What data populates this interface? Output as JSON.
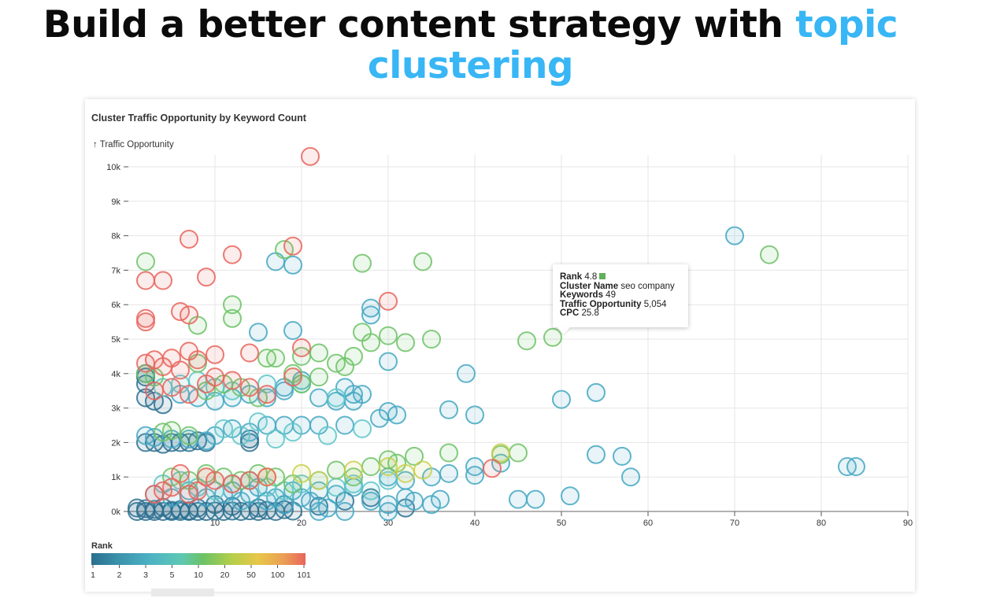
{
  "headline": {
    "prefix": "Build a better content strategy with",
    "accent": "topic",
    "line2": "clustering"
  },
  "colors": {
    "accent": "#38b6f5",
    "text": "#0b0b0b"
  },
  "chart_data": {
    "type": "scatter",
    "title": "Cluster Traffic Opportunity by Keyword Count",
    "ylabel": "↑ Traffic Opportunity",
    "xlabel": "",
    "xlim": [
      0,
      90
    ],
    "ylim": [
      0,
      10000
    ],
    "x_ticks": [
      "10",
      "20",
      "30",
      "40",
      "50",
      "60",
      "70",
      "80",
      "90"
    ],
    "y_ticks": [
      "0k",
      "1k",
      "2k",
      "3k",
      "4k",
      "5k",
      "6k",
      "7k",
      "8k",
      "9k",
      "10k"
    ],
    "grid": true,
    "size_encoding": "uniform",
    "color_field": "Rank",
    "color_legend": {
      "title": "Rank",
      "labels": [
        "1",
        "2",
        "3",
        "5",
        "10",
        "20",
        "50",
        "100",
        "101"
      ],
      "colors": [
        "#2a6f8f",
        "#3d95ae",
        "#4db3c4",
        "#5ec8b4",
        "#6cc266",
        "#b6cf4a",
        "#e8c64a",
        "#eb9e55",
        "#e8645c"
      ]
    },
    "tooltip": {
      "rank_label": "Rank",
      "rank": "4.8",
      "cluster_label": "Cluster Name",
      "cluster": "seo company",
      "keywords_label": "Keywords",
      "keywords": "49",
      "traffic_label": "Traffic Opportunity",
      "traffic": "5,054",
      "cpc_label": "CPC",
      "cpc": "25.8"
    },
    "series": [
      {
        "name": "rank-dark",
        "color": "#2a6f8f",
        "points": [
          [
            1,
            0
          ],
          [
            2,
            0
          ],
          [
            3,
            0
          ],
          [
            4,
            0
          ],
          [
            5,
            0
          ],
          [
            6,
            0
          ],
          [
            7,
            0
          ],
          [
            1,
            100
          ],
          [
            2,
            80
          ],
          [
            3,
            60
          ],
          [
            4,
            120
          ],
          [
            5,
            30
          ],
          [
            6,
            50
          ],
          [
            7,
            20
          ],
          [
            8,
            0
          ],
          [
            9,
            0
          ],
          [
            10,
            10
          ],
          [
            11,
            0
          ],
          [
            12,
            10
          ],
          [
            13,
            0
          ],
          [
            14,
            20
          ],
          [
            15,
            0
          ],
          [
            16,
            30
          ],
          [
            17,
            0
          ],
          [
            18,
            50
          ],
          [
            19,
            10
          ],
          [
            8,
            100
          ],
          [
            10,
            200
          ],
          [
            12,
            150
          ],
          [
            15,
            100
          ],
          [
            18,
            200
          ],
          [
            22,
            150
          ],
          [
            25,
            300
          ],
          [
            28,
            400
          ],
          [
            32,
            100
          ],
          [
            2,
            3300
          ],
          [
            3,
            3200
          ],
          [
            4,
            3100
          ],
          [
            2,
            2000
          ],
          [
            3,
            2000
          ],
          [
            4,
            1950
          ],
          [
            5,
            2000
          ],
          [
            6,
            2000
          ],
          [
            7,
            2000
          ],
          [
            8,
            2050
          ],
          [
            9,
            2000
          ],
          [
            14,
            2000
          ],
          [
            14,
            2100
          ],
          [
            2,
            3700
          ],
          [
            2,
            4000
          ],
          [
            2,
            3900
          ]
        ]
      },
      {
        "name": "rank-mid",
        "color": "#43a7c2",
        "points": [
          [
            12,
            600
          ],
          [
            14,
            500
          ],
          [
            16,
            300
          ],
          [
            18,
            200
          ],
          [
            20,
            400
          ],
          [
            22,
            600
          ],
          [
            24,
            500
          ],
          [
            26,
            700
          ],
          [
            28,
            300
          ],
          [
            30,
            200
          ],
          [
            32,
            400
          ],
          [
            33,
            300
          ],
          [
            35,
            200
          ],
          [
            36,
            350
          ],
          [
            3,
            500
          ],
          [
            5,
            400
          ],
          [
            7,
            600
          ],
          [
            9,
            400
          ],
          [
            11,
            500
          ],
          [
            13,
            300
          ],
          [
            15,
            700
          ],
          [
            17,
            400
          ],
          [
            19,
            600
          ],
          [
            21,
            300
          ],
          [
            23,
            100
          ],
          [
            25,
            0
          ],
          [
            30,
            0
          ],
          [
            22,
            0
          ],
          [
            6,
            3400
          ],
          [
            8,
            3300
          ],
          [
            10,
            3200
          ],
          [
            12,
            3300
          ],
          [
            14,
            3400
          ],
          [
            16,
            3300
          ],
          [
            18,
            3600
          ],
          [
            18,
            3500
          ],
          [
            20,
            3800
          ],
          [
            22,
            3300
          ],
          [
            24,
            3200
          ],
          [
            26,
            3400
          ],
          [
            2,
            2200
          ],
          [
            3,
            2150
          ],
          [
            5,
            2100
          ],
          [
            7,
            2100
          ],
          [
            9,
            2050
          ],
          [
            10,
            2200
          ],
          [
            12,
            2400
          ],
          [
            14,
            2300
          ],
          [
            16,
            2500
          ],
          [
            18,
            2500
          ],
          [
            20,
            2500
          ],
          [
            22,
            2500
          ],
          [
            25,
            2500
          ],
          [
            29,
            2700
          ],
          [
            30,
            2900
          ],
          [
            31,
            2800
          ],
          [
            37,
            2950
          ],
          [
            40,
            2800
          ],
          [
            50,
            3250
          ],
          [
            54,
            3450
          ],
          [
            39,
            4000
          ],
          [
            30,
            4350
          ],
          [
            19,
            5250
          ],
          [
            15,
            5200
          ],
          [
            17,
            7250
          ],
          [
            19,
            7150
          ],
          [
            28,
            5900
          ],
          [
            28,
            5700
          ],
          [
            70,
            8000
          ],
          [
            30,
            1000
          ],
          [
            32,
            900
          ],
          [
            35,
            1000
          ],
          [
            37,
            1100
          ],
          [
            40,
            1050
          ],
          [
            40,
            1300
          ],
          [
            43,
            1400
          ],
          [
            45,
            350
          ],
          [
            47,
            350
          ],
          [
            51,
            450
          ],
          [
            54,
            1650
          ],
          [
            57,
            1600
          ],
          [
            58,
            1000
          ],
          [
            83,
            1300
          ],
          [
            84,
            1300
          ],
          [
            26,
            3200
          ],
          [
            25,
            3600
          ],
          [
            27,
            3400
          ]
        ]
      },
      {
        "name": "rank-teal",
        "color": "#5dc4c9",
        "points": [
          [
            4,
            800
          ],
          [
            6,
            900
          ],
          [
            8,
            700
          ],
          [
            10,
            600
          ],
          [
            12,
            800
          ],
          [
            14,
            900
          ],
          [
            16,
            700
          ],
          [
            18,
            600
          ],
          [
            20,
            800
          ],
          [
            22,
            900
          ],
          [
            24,
            700
          ],
          [
            26,
            800
          ],
          [
            28,
            600
          ],
          [
            30,
            900
          ],
          [
            11,
            2400
          ],
          [
            13,
            2200
          ],
          [
            15,
            2600
          ],
          [
            17,
            2100
          ],
          [
            19,
            2300
          ],
          [
            23,
            2200
          ],
          [
            27,
            2400
          ],
          [
            4,
            3600
          ],
          [
            6,
            3700
          ],
          [
            8,
            3800
          ],
          [
            10,
            3600
          ],
          [
            12,
            3500
          ],
          [
            16,
            3700
          ],
          [
            20,
            3700
          ],
          [
            24,
            3300
          ]
        ]
      },
      {
        "name": "rank-green",
        "color": "#6cc266",
        "points": [
          [
            2,
            7250
          ],
          [
            12,
            6000
          ],
          [
            12,
            5600
          ],
          [
            18,
            7600
          ],
          [
            20,
            4500
          ],
          [
            22,
            4600
          ],
          [
            24,
            4300
          ],
          [
            25,
            4200
          ],
          [
            26,
            4500
          ],
          [
            27,
            5200
          ],
          [
            28,
            4900
          ],
          [
            30,
            5100
          ],
          [
            32,
            4900
          ],
          [
            35,
            5000
          ],
          [
            46,
            4950
          ],
          [
            49,
            5050
          ],
          [
            74,
            7450
          ],
          [
            34,
            7250
          ],
          [
            27,
            7200
          ],
          [
            16,
            4450
          ],
          [
            17,
            4450
          ],
          [
            19,
            4000
          ],
          [
            20,
            3700
          ],
          [
            22,
            3900
          ],
          [
            4,
            2300
          ],
          [
            5,
            2350
          ],
          [
            7,
            2200
          ],
          [
            24,
            1200
          ],
          [
            26,
            1000
          ],
          [
            28,
            1300
          ],
          [
            30,
            1500
          ],
          [
            31,
            1400
          ],
          [
            33,
            1600
          ],
          [
            37,
            1700
          ],
          [
            43,
            1650
          ],
          [
            45,
            1700
          ],
          [
            5,
            1000
          ],
          [
            7,
            900
          ],
          [
            9,
            1100
          ],
          [
            11,
            1000
          ],
          [
            13,
            900
          ],
          [
            15,
            1100
          ],
          [
            17,
            1000
          ],
          [
            19,
            800
          ],
          [
            2,
            4000
          ],
          [
            3,
            3900
          ],
          [
            8,
            4300
          ],
          [
            9,
            3500
          ],
          [
            13,
            3600
          ],
          [
            15,
            3300
          ],
          [
            11,
            3700
          ],
          [
            8,
            5400
          ]
        ]
      },
      {
        "name": "rank-yellow",
        "color": "#c9cf4a",
        "points": [
          [
            16,
            1000
          ],
          [
            20,
            1100
          ],
          [
            22,
            900
          ],
          [
            26,
            1200
          ],
          [
            30,
            1300
          ],
          [
            32,
            1100
          ],
          [
            34,
            1200
          ],
          [
            43,
            1700
          ]
        ]
      },
      {
        "name": "rank-red",
        "color": "#e8645c",
        "points": [
          [
            21,
            10300
          ],
          [
            7,
            7900
          ],
          [
            19,
            7700
          ],
          [
            12,
            7450
          ],
          [
            2,
            6700
          ],
          [
            4,
            6700
          ],
          [
            9,
            6800
          ],
          [
            2,
            5600
          ],
          [
            2,
            5500
          ],
          [
            6,
            5800
          ],
          [
            7,
            5700
          ],
          [
            30,
            6100
          ],
          [
            7,
            4650
          ],
          [
            10,
            4550
          ],
          [
            14,
            4600
          ],
          [
            20,
            4750
          ],
          [
            3,
            4400
          ],
          [
            5,
            4450
          ],
          [
            2,
            4300
          ],
          [
            4,
            4200
          ],
          [
            6,
            4100
          ],
          [
            8,
            4400
          ],
          [
            10,
            3900
          ],
          [
            12,
            3800
          ],
          [
            14,
            3600
          ],
          [
            16,
            3400
          ],
          [
            3,
            3500
          ],
          [
            5,
            3600
          ],
          [
            7,
            3400
          ],
          [
            9,
            3700
          ],
          [
            19,
            3900
          ],
          [
            3,
            500
          ],
          [
            4,
            600
          ],
          [
            5,
            700
          ],
          [
            6,
            1100
          ],
          [
            7,
            500
          ],
          [
            8,
            600
          ],
          [
            9,
            1000
          ],
          [
            10,
            900
          ],
          [
            12,
            800
          ],
          [
            14,
            900
          ],
          [
            16,
            1000
          ],
          [
            42,
            1250
          ]
        ]
      }
    ]
  }
}
